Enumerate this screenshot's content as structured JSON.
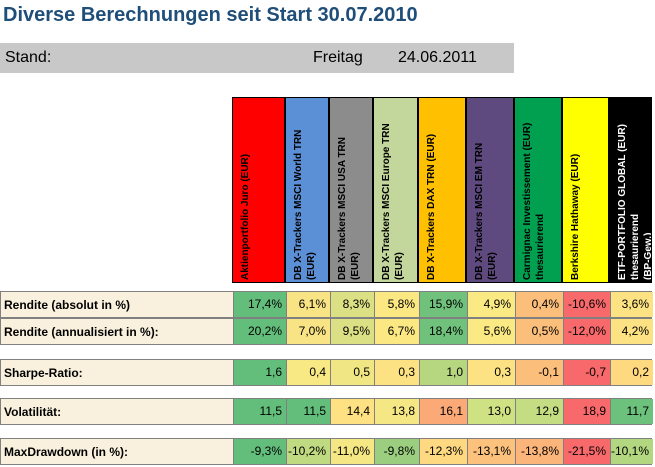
{
  "title": "Diverse Berechnungen seit Start 30.07.2010",
  "stand": {
    "label": "Stand:",
    "day": "Freitag",
    "date": "24.06.2011"
  },
  "columns": [
    {
      "lines": [
        "Aktienportfolio Juro (EUR)"
      ],
      "color": "#ff0000",
      "text_color": "#000000"
    },
    {
      "lines": [
        "DB X-Trackers MSCI World TRN",
        "(EUR)"
      ],
      "color": "#5b8fd6",
      "text_color": "#000000"
    },
    {
      "lines": [
        "DB X-Trackers MSCI USA TRN",
        "(EUR)"
      ],
      "color": "#8c8c8c",
      "text_color": "#000000"
    },
    {
      "lines": [
        "DB X-Trackers MSCI Europe TRN",
        "(EUR)"
      ],
      "color": "#c3d69b",
      "text_color": "#000000"
    },
    {
      "lines": [
        "DB X-Trackers DAX TRN (EUR)"
      ],
      "color": "#ffc000",
      "text_color": "#000000"
    },
    {
      "lines": [
        "DB X-Trackers MSCI EM TRN",
        "(EUR)"
      ],
      "color": "#5f4a7f",
      "text_color": "#000000"
    },
    {
      "lines": [
        "Carmignac Investissement (EUR)",
        "thesaurierend"
      ],
      "color": "#00a050",
      "text_color": "#000000"
    },
    {
      "lines": [
        "Berkshire Hathaway (EUR)"
      ],
      "color": "#ffff00",
      "text_color": "#000000"
    },
    {
      "lines": [
        "ETF-PORTFOLIO GLOBAL (EUR)",
        "thesaurierend",
        "(BP-Gew.)"
      ],
      "color": "#000000",
      "text_color": "#ffffff"
    }
  ],
  "rows": [
    {
      "label": "Rendite (absolut in %)",
      "values": [
        "17,4%",
        "6,1%",
        "8,3%",
        "5,8%",
        "15,9%",
        "4,9%",
        "0,4%",
        "-10,6%",
        "3,6%"
      ],
      "colors": [
        "#63be7b",
        "#f8e484",
        "#dce084",
        "#fbe883",
        "#6fc17c",
        "#fbe983",
        "#fcbf7b",
        "#f8696b",
        "#fde283"
      ]
    },
    {
      "label": "Rendite (annualisiert in %):",
      "values": [
        "20,2%",
        "7,0%",
        "9,5%",
        "6,7%",
        "18,4%",
        "5,6%",
        "0,5%",
        "-12,0%",
        "4,2%"
      ],
      "colors": [
        "#63be7b",
        "#f8e484",
        "#dce084",
        "#fbe883",
        "#6fc17c",
        "#fbe983",
        "#fcbf7b",
        "#f8696b",
        "#fde283"
      ]
    },
    {
      "label": "Sharpe-Ratio:",
      "values": [
        "1,6",
        "0,4",
        "0,5",
        "0,3",
        "1,0",
        "0,3",
        "-0,1",
        "-0,7",
        "0,2"
      ],
      "colors": [
        "#63be7b",
        "#f8e984",
        "#f0e784",
        "#fde283",
        "#b6d680",
        "#fde283",
        "#fcbf7b",
        "#f8696b",
        "#fed980"
      ]
    },
    {
      "label": "Volatilität:",
      "values": [
        "11,5",
        "11,5",
        "14,4",
        "13,8",
        "16,1",
        "13,0",
        "12,9",
        "18,9",
        "11,7"
      ],
      "colors": [
        "#63be7b",
        "#63be7b",
        "#fee182",
        "#f4e784",
        "#fbaa77",
        "#cfe283",
        "#c5dd82",
        "#f8696b",
        "#6cc17c"
      ]
    },
    {
      "label": "MaxDrawdown (in %):",
      "values": [
        "-9,3%",
        "-10,2%",
        "-11,0%",
        "-9,8%",
        "-12,3%",
        "-13,1%",
        "-13,8%",
        "-21,5%",
        "-10,1%"
      ],
      "colors": [
        "#63be7b",
        "#c0da81",
        "#f4e784",
        "#9bcf7f",
        "#fed981",
        "#fcc17c",
        "#fbb479",
        "#f8696b",
        "#b3d680"
      ]
    }
  ]
}
